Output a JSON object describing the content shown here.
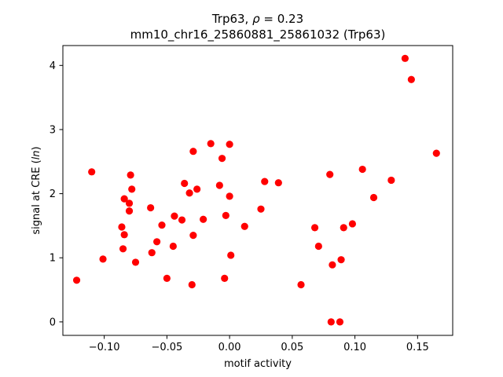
{
  "chart_data": {
    "type": "scatter",
    "title_prefix": "Trp63, ",
    "title_rho": "ρ",
    "title_suffix": " = 0.23",
    "subtitle": "mm10_chr16_25860881_25861032 (Trp63)",
    "xlabel": "motif activity",
    "ylabel_prefix": "signal at CRE (",
    "ylabel_italic": "ln",
    "ylabel_suffix": ")",
    "xlim": [
      -0.133,
      0.178
    ],
    "ylim": [
      -0.21,
      4.31
    ],
    "xticks": [
      -0.1,
      -0.05,
      0.0,
      0.05,
      0.1,
      0.15
    ],
    "xtick_labels": [
      "−0.10",
      "−0.05",
      "0.00",
      "0.05",
      "0.10",
      "0.15"
    ],
    "yticks": [
      0,
      1,
      2,
      3,
      4
    ],
    "ytick_labels": [
      "0",
      "1",
      "2",
      "3",
      "4"
    ],
    "marker_color": "#ff0000",
    "grid": false,
    "points": [
      {
        "x": -0.122,
        "y": 0.65
      },
      {
        "x": -0.11,
        "y": 2.34
      },
      {
        "x": -0.101,
        "y": 0.98
      },
      {
        "x": -0.086,
        "y": 1.48
      },
      {
        "x": -0.085,
        "y": 1.14
      },
      {
        "x": -0.084,
        "y": 1.92
      },
      {
        "x": -0.084,
        "y": 1.36
      },
      {
        "x": -0.08,
        "y": 1.85
      },
      {
        "x": -0.08,
        "y": 1.73
      },
      {
        "x": -0.079,
        "y": 2.29
      },
      {
        "x": -0.078,
        "y": 2.07
      },
      {
        "x": -0.075,
        "y": 0.93
      },
      {
        "x": -0.063,
        "y": 1.78
      },
      {
        "x": -0.062,
        "y": 1.08
      },
      {
        "x": -0.058,
        "y": 1.25
      },
      {
        "x": -0.054,
        "y": 1.51
      },
      {
        "x": -0.05,
        "y": 0.68
      },
      {
        "x": -0.045,
        "y": 1.18
      },
      {
        "x": -0.044,
        "y": 1.65
      },
      {
        "x": -0.038,
        "y": 1.59
      },
      {
        "x": -0.036,
        "y": 2.16
      },
      {
        "x": -0.032,
        "y": 2.01
      },
      {
        "x": -0.03,
        "y": 0.58
      },
      {
        "x": -0.029,
        "y": 2.66
      },
      {
        "x": -0.029,
        "y": 1.35
      },
      {
        "x": -0.026,
        "y": 2.07
      },
      {
        "x": -0.021,
        "y": 1.6
      },
      {
        "x": -0.015,
        "y": 2.78
      },
      {
        "x": -0.008,
        "y": 2.13
      },
      {
        "x": -0.006,
        "y": 2.55
      },
      {
        "x": -0.004,
        "y": 0.68
      },
      {
        "x": -0.003,
        "y": 1.66
      },
      {
        "x": 0.0,
        "y": 1.96
      },
      {
        "x": 0.0,
        "y": 2.77
      },
      {
        "x": 0.001,
        "y": 1.04
      },
      {
        "x": 0.012,
        "y": 1.49
      },
      {
        "x": 0.025,
        "y": 1.76
      },
      {
        "x": 0.028,
        "y": 2.19
      },
      {
        "x": 0.039,
        "y": 2.17
      },
      {
        "x": 0.057,
        "y": 0.58
      },
      {
        "x": 0.068,
        "y": 1.47
      },
      {
        "x": 0.071,
        "y": 1.18
      },
      {
        "x": 0.08,
        "y": 2.3
      },
      {
        "x": 0.081,
        "y": 0.0
      },
      {
        "x": 0.082,
        "y": 0.89
      },
      {
        "x": 0.088,
        "y": 0.0
      },
      {
        "x": 0.089,
        "y": 0.97
      },
      {
        "x": 0.091,
        "y": 1.47
      },
      {
        "x": 0.098,
        "y": 1.53
      },
      {
        "x": 0.106,
        "y": 2.38
      },
      {
        "x": 0.115,
        "y": 1.94
      },
      {
        "x": 0.129,
        "y": 2.21
      },
      {
        "x": 0.14,
        "y": 4.11
      },
      {
        "x": 0.145,
        "y": 3.78
      },
      {
        "x": 0.165,
        "y": 2.63
      }
    ]
  }
}
